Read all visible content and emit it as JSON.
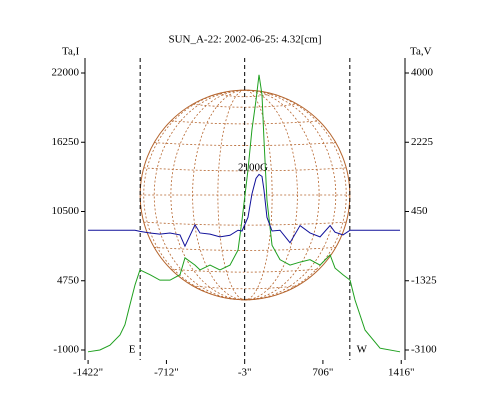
{
  "chart_data": {
    "type": "line",
    "title": "SUN_A-22: 2002-06-25: 4.32[cm]",
    "y_label": "Ta,I",
    "y2_label": "Ta,V",
    "x": [
      -1423,
      -1315,
      -1224,
      -1133,
      -1088,
      -1043,
      -997,
      -952,
      -861,
      -771,
      -680,
      -589,
      -544,
      -453,
      -408,
      -317,
      -227,
      -136,
      -63,
      -27,
      27,
      63,
      100,
      127,
      154,
      172,
      199,
      245,
      317,
      408,
      499,
      589,
      680,
      771,
      816,
      888,
      952,
      997,
      1088,
      1224,
      1405
    ],
    "series": [
      {
        "name": "Ta,I",
        "color": "#1fa01f",
        "values": [
          -1150,
          -1000,
          -600,
          250,
          1100,
          2750,
          4400,
          5650,
          5250,
          4800,
          4800,
          5250,
          6650,
          6050,
          5650,
          6050,
          5650,
          6050,
          7300,
          9800,
          13950,
          17300,
          19750,
          21850,
          20200,
          16450,
          11450,
          7700,
          6500,
          6050,
          6300,
          6500,
          6050,
          6900,
          5800,
          5250,
          4800,
          3150,
          650,
          -850,
          -1150
        ]
      },
      {
        "name": "Ta,V",
        "color": "#10109a",
        "axis": "y2",
        "values": [
          -30,
          -30,
          -30,
          -30,
          -30,
          -30,
          -30,
          -60,
          -100,
          -130,
          -100,
          -150,
          -440,
          110,
          -100,
          -130,
          -200,
          -160,
          -30,
          -50,
          300,
          900,
          1300,
          1400,
          1350,
          1000,
          300,
          -50,
          -30,
          -350,
          90,
          -100,
          -200,
          90,
          -80,
          -150,
          -30,
          -30,
          -30,
          -30,
          -30
        ]
      }
    ],
    "xlim": [
      -1450,
      1450
    ],
    "xticks": [
      {
        "value": -1422,
        "label": "-1422\""
      },
      {
        "value": -712,
        "label": "-712\""
      },
      {
        "value": -3,
        "label": "-3\""
      },
      {
        "value": 706,
        "label": "706\""
      },
      {
        "value": 1416,
        "label": "1416\""
      }
    ],
    "ylim": [
      -1000,
      22000
    ],
    "yticks": [
      -1000,
      4750,
      10500,
      16250,
      22000
    ],
    "y2lim": [
      -3100,
      4000
    ],
    "y2ticks": [
      -3100,
      -1325,
      450,
      2225,
      4000
    ],
    "vlines": [
      -950,
      -3,
      950
    ],
    "annotations": [
      {
        "text": "E",
        "x": -950,
        "y": -1000
      },
      {
        "text": "W",
        "x": 950,
        "y": -1000
      },
      {
        "text": "2100G",
        "x": 72,
        "y": 14100
      }
    ]
  }
}
